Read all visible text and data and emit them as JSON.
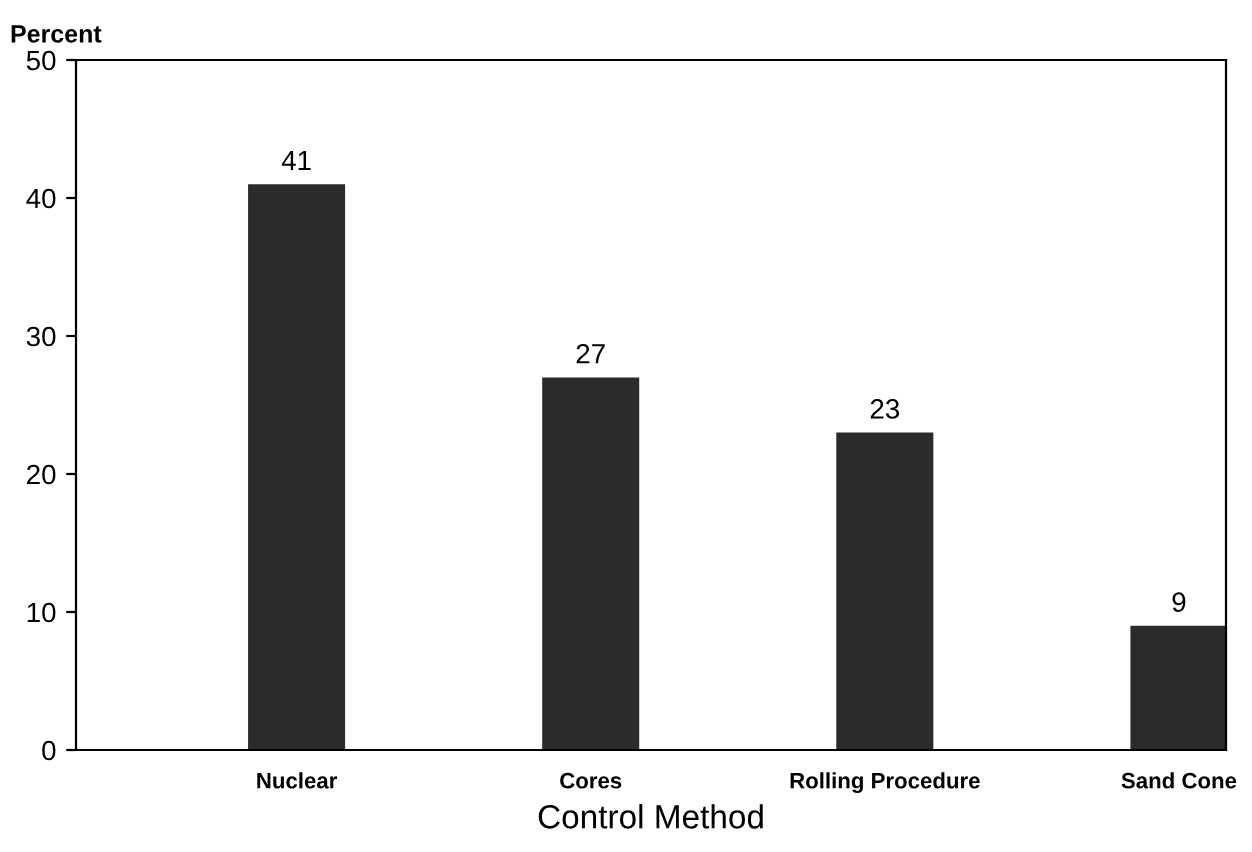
{
  "chart_data": {
    "type": "bar",
    "ylabel": "Percent",
    "xlabel": "Control Method",
    "categories": [
      "Nuclear",
      "Cores",
      "Rolling Procedure",
      "Sand Cone"
    ],
    "values": [
      41,
      27,
      23,
      9
    ],
    "color": "#2b2b2b",
    "ylim": [
      0,
      50
    ],
    "yticks": [
      0,
      10,
      20,
      30,
      40,
      50
    ],
    "grid": false,
    "data_labels": true
  }
}
